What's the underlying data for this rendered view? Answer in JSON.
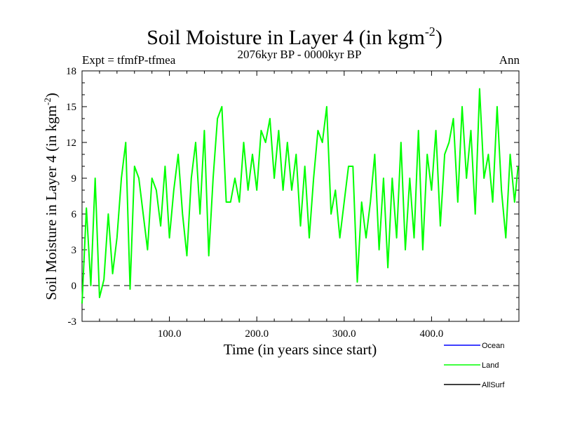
{
  "chart_data": {
    "type": "line",
    "title": "Soil Moisture in Layer 4 (in kgm",
    "title_sup": "-2",
    "title_close": ")",
    "subtitle": "2076kyr BP - 0000kyr BP",
    "expt_label": "Expt = tfmfP-tfmea",
    "season_label": "Ann",
    "xlabel": "Time (in years since start)",
    "ylabel": "Soil Moisture in Layer 4 (in kgm",
    "ylabel_sup": "-2",
    "ylabel_close": ")",
    "xlim": [
      0,
      500
    ],
    "ylim": [
      -3,
      18
    ],
    "x_ticks": [
      100,
      200,
      300,
      400
    ],
    "x_tick_labels": [
      "100.0",
      "200.0",
      "300.0",
      "400.0"
    ],
    "y_ticks": [
      -3,
      0,
      3,
      6,
      9,
      12,
      15,
      18
    ],
    "y_tick_labels": [
      "-3",
      "0",
      "3",
      "6",
      "9",
      "12",
      "15",
      "18"
    ],
    "zero_line": 0,
    "legend": [
      {
        "name": "Ocean",
        "color": "#0000ff"
      },
      {
        "name": "Land",
        "color": "#00ff00"
      },
      {
        "name": "AllSurf",
        "color": "#000000"
      }
    ],
    "series": [
      {
        "name": "Land",
        "color": "#00ff00",
        "x": [
          0,
          5,
          10,
          15,
          20,
          25,
          30,
          35,
          40,
          45,
          50,
          55,
          60,
          65,
          70,
          75,
          80,
          85,
          90,
          95,
          100,
          105,
          110,
          115,
          120,
          125,
          130,
          135,
          140,
          145,
          150,
          155,
          160,
          165,
          170,
          175,
          180,
          185,
          190,
          195,
          200,
          205,
          210,
          215,
          220,
          225,
          230,
          235,
          240,
          245,
          250,
          255,
          260,
          265,
          270,
          275,
          280,
          285,
          290,
          295,
          300,
          305,
          310,
          315,
          320,
          325,
          330,
          335,
          340,
          345,
          350,
          355,
          360,
          365,
          370,
          375,
          380,
          385,
          390,
          395,
          400,
          405,
          410,
          415,
          420,
          425,
          430,
          435,
          440,
          445,
          450,
          455,
          460,
          465,
          470,
          475,
          480,
          485,
          490,
          495,
          499
        ],
        "values": [
          -1.5,
          6.5,
          0,
          9,
          -1,
          0.5,
          6,
          1,
          4,
          9,
          12,
          -0.3,
          10,
          9,
          6,
          3,
          9,
          8,
          5,
          10,
          4,
          8,
          11,
          6,
          2.5,
          9,
          12,
          6,
          13,
          2.5,
          9,
          14,
          15,
          7,
          7,
          9,
          7,
          12,
          8,
          11,
          8,
          13,
          12,
          14,
          9,
          13,
          8,
          12,
          8,
          11,
          5,
          10,
          4,
          9,
          13,
          12,
          15,
          6,
          8,
          4,
          7,
          10,
          10,
          0.3,
          7,
          4,
          7,
          11,
          3,
          9,
          1.5,
          9,
          4,
          12,
          3,
          9,
          4,
          13,
          3,
          11,
          8,
          13,
          5,
          11,
          12,
          14,
          7,
          15,
          9,
          13,
          6,
          16.5,
          9,
          11,
          7,
          15,
          8,
          4,
          11,
          7,
          10
        ]
      }
    ]
  }
}
